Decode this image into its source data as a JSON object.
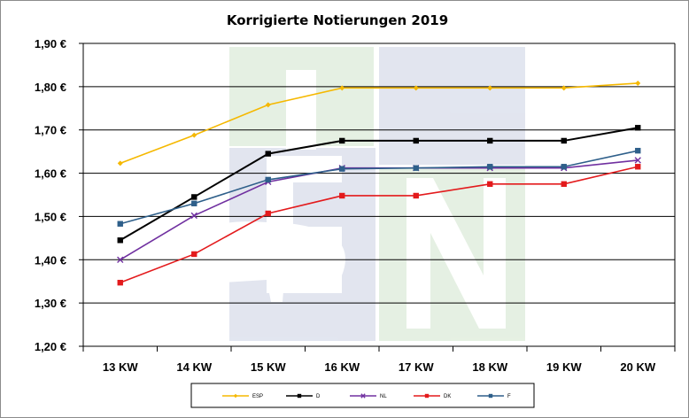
{
  "chart_data": {
    "type": "line",
    "title": "Korrigierte Notierungen 2019",
    "xlabel": "",
    "ylabel": "",
    "categories": [
      "13 KW",
      "14 KW",
      "15 KW",
      "16 KW",
      "17 KW",
      "18 KW",
      "19 KW",
      "20 KW"
    ],
    "y_tick_labels": [
      "1,90 €",
      "1,80 €",
      "1,70 €",
      "1,60 €",
      "1,50 €",
      "1,40 €",
      "1,30 €",
      "1,20 €"
    ],
    "y_ticks": [
      1.9,
      1.8,
      1.7,
      1.6,
      1.5,
      1.4,
      1.3,
      1.2
    ],
    "ylim": [
      1.2,
      1.9
    ],
    "grid": true,
    "legend_position": "bottom",
    "series": [
      {
        "name": "ESP",
        "color": "#f5b800",
        "marker": "diamond",
        "values": [
          1.623,
          1.688,
          1.758,
          1.797,
          1.797,
          1.797,
          1.797,
          1.808
        ]
      },
      {
        "name": "D",
        "color": "#000000",
        "marker": "square",
        "values": [
          1.445,
          1.545,
          1.645,
          1.675,
          1.675,
          1.675,
          1.675,
          1.705
        ]
      },
      {
        "name": "NL",
        "color": "#7030a0",
        "marker": "cross",
        "values": [
          1.4,
          1.502,
          1.58,
          1.612,
          1.612,
          1.612,
          1.612,
          1.63
        ]
      },
      {
        "name": "DK",
        "color": "#e31a1c",
        "marker": "square",
        "values": [
          1.347,
          1.413,
          1.507,
          1.548,
          1.548,
          1.575,
          1.575,
          1.615
        ]
      },
      {
        "name": "F",
        "color": "#2e5f8a",
        "marker": "square",
        "values": [
          1.483,
          1.53,
          1.585,
          1.61,
          1.612,
          1.615,
          1.615,
          1.652
        ]
      }
    ]
  }
}
